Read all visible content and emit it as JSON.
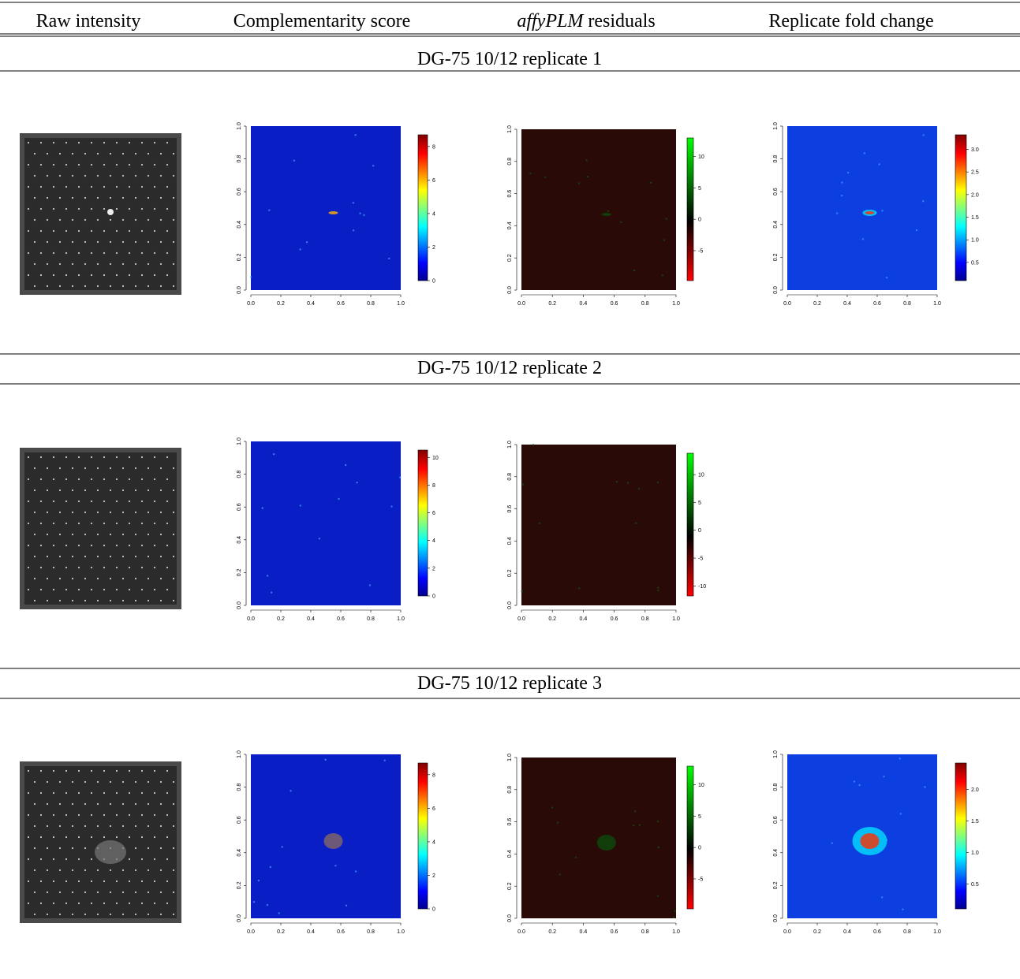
{
  "header": [
    "Raw intensity",
    "Complementarity score",
    {
      "italic": "affyPLM",
      "text": "residuals"
    },
    "Replicate fold change"
  ],
  "axis_ticks": [
    "0.0",
    "0.2",
    "0.4",
    "0.6",
    "0.8",
    "1.0"
  ],
  "sections": [
    {
      "title": "DG-75 10/12 replicate 1",
      "complementarity_colorbar": [
        "0",
        "2",
        "4",
        "6",
        "8"
      ],
      "residuals_colorbar": [
        "-5",
        "0",
        "5",
        "10"
      ],
      "fold_change_colorbar": [
        "0.5",
        "1.0",
        "1.5",
        "2.0",
        "2.5",
        "3.0"
      ]
    },
    {
      "title": "DG-75 10/12 replicate 2",
      "complementarity_colorbar": [
        "0",
        "2",
        "4",
        "6",
        "8",
        "10"
      ],
      "residuals_colorbar": [
        "-10",
        "-5",
        "0",
        "5",
        "10"
      ]
    },
    {
      "title": "DG-75 10/12 replicate 3",
      "complementarity_colorbar": [
        "0",
        "2",
        "4",
        "6",
        "8"
      ],
      "residuals_colorbar": [
        "-5",
        "0",
        "5",
        "10"
      ],
      "fold_change_colorbar": [
        "0.5",
        "1.0",
        "1.5",
        "2.0"
      ]
    }
  ]
}
